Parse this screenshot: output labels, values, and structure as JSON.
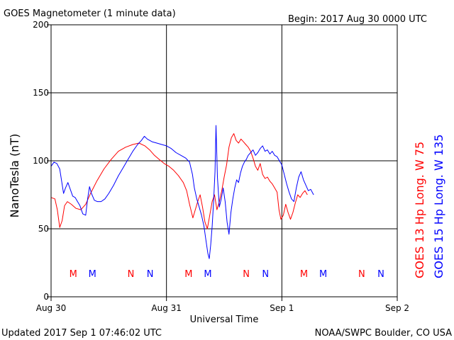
{
  "header": {
    "title": "GOES Magnetometer (1 minute data)",
    "begin": "Begin:  2017 Aug 30 0000 UTC"
  },
  "footer": {
    "updated": "Updated 2017 Sep  1 07:46:02 UTC",
    "credit": "NOAA/SWPC Boulder, CO USA"
  },
  "colors": {
    "goes13": "#ff0000",
    "goes15": "#0000ff",
    "axis": "#000000"
  },
  "chart_data": {
    "type": "line",
    "ylabel": "NanoTesla (nT)",
    "xlabel": "Universal Time",
    "ylim": [
      0,
      200
    ],
    "yticks": [
      0,
      50,
      100,
      150,
      200
    ],
    "xlim_hours": [
      0,
      72
    ],
    "xticks": [
      {
        "label": "Aug 30",
        "hour": 0
      },
      {
        "label": "Aug 31",
        "hour": 24
      },
      {
        "label": "Sep 1",
        "hour": 48
      },
      {
        "label": "Sep 2",
        "hour": 72
      }
    ],
    "grid": true,
    "legend": [
      {
        "series": "goes13",
        "text": "GOES 13 Hp  Long. W 75"
      },
      {
        "series": "goes15",
        "text": "GOES 15 Hp  Long. W 135"
      }
    ],
    "markers": [
      {
        "label": "M",
        "hour": 4.6,
        "series": "goes13"
      },
      {
        "label": "M",
        "hour": 8.6,
        "series": "goes15"
      },
      {
        "label": "N",
        "hour": 16.6,
        "series": "goes13"
      },
      {
        "label": "N",
        "hour": 20.6,
        "series": "goes15"
      },
      {
        "label": "M",
        "hour": 28.6,
        "series": "goes13"
      },
      {
        "label": "M",
        "hour": 32.6,
        "series": "goes15"
      },
      {
        "label": "N",
        "hour": 40.6,
        "series": "goes13"
      },
      {
        "label": "N",
        "hour": 44.6,
        "series": "goes15"
      },
      {
        "label": "M",
        "hour": 52.6,
        "series": "goes13"
      },
      {
        "label": "M",
        "hour": 56.6,
        "series": "goes15"
      },
      {
        "label": "N",
        "hour": 64.6,
        "series": "goes13"
      },
      {
        "label": "N",
        "hour": 68.6,
        "series": "goes15"
      }
    ],
    "series": [
      {
        "id": "goes13",
        "name": "GOES 13 Hp",
        "points": [
          [
            0,
            73
          ],
          [
            0.8,
            72
          ],
          [
            1.3,
            64
          ],
          [
            1.8,
            51
          ],
          [
            2.3,
            56
          ],
          [
            2.8,
            67
          ],
          [
            3.4,
            70
          ],
          [
            4.2,
            68
          ],
          [
            5.2,
            65
          ],
          [
            6.2,
            64
          ],
          [
            7.2,
            68
          ],
          [
            8.2,
            76
          ],
          [
            9.5,
            85
          ],
          [
            11,
            94
          ],
          [
            12.5,
            101
          ],
          [
            14,
            107
          ],
          [
            15.5,
            110
          ],
          [
            17,
            112
          ],
          [
            18.3,
            113
          ],
          [
            19.5,
            111
          ],
          [
            20.5,
            108
          ],
          [
            21.5,
            104
          ],
          [
            22.5,
            101
          ],
          [
            23.5,
            98
          ],
          [
            24.5,
            96
          ],
          [
            25.5,
            93
          ],
          [
            26.5,
            89
          ],
          [
            27.5,
            84
          ],
          [
            28.2,
            78
          ],
          [
            28.8,
            68
          ],
          [
            29.5,
            58
          ],
          [
            30,
            64
          ],
          [
            30.5,
            70
          ],
          [
            31,
            75
          ],
          [
            31.5,
            66
          ],
          [
            32,
            55
          ],
          [
            32.5,
            50
          ],
          [
            33,
            60
          ],
          [
            33.5,
            70
          ],
          [
            34,
            75
          ],
          [
            34.5,
            64
          ],
          [
            35,
            70
          ],
          [
            35.5,
            78
          ],
          [
            36,
            88
          ],
          [
            36.5,
            97
          ],
          [
            37,
            110
          ],
          [
            37.5,
            117
          ],
          [
            38,
            120
          ],
          [
            38.5,
            115
          ],
          [
            39,
            113
          ],
          [
            39.5,
            116
          ],
          [
            40,
            114
          ],
          [
            40.5,
            112
          ],
          [
            41,
            110
          ],
          [
            41.5,
            107
          ],
          [
            42,
            102
          ],
          [
            42.5,
            96
          ],
          [
            43,
            93
          ],
          [
            43.5,
            98
          ],
          [
            44,
            90
          ],
          [
            44.5,
            87
          ],
          [
            45,
            88
          ],
          [
            45.5,
            85
          ],
          [
            46,
            83
          ],
          [
            46.5,
            80
          ],
          [
            47,
            77
          ],
          [
            47.4,
            64
          ],
          [
            47.8,
            57
          ],
          [
            48.3,
            60
          ],
          [
            48.8,
            68
          ],
          [
            49.3,
            62
          ],
          [
            49.8,
            57
          ],
          [
            50.3,
            62
          ],
          [
            50.8,
            69
          ],
          [
            51.3,
            75
          ],
          [
            51.8,
            73
          ],
          [
            52.3,
            76
          ],
          [
            52.8,
            78
          ],
          [
            53.3,
            75
          ]
        ]
      },
      {
        "id": "goes15",
        "name": "GOES 15 Hp",
        "points": [
          [
            0,
            96
          ],
          [
            0.6,
            99
          ],
          [
            1.2,
            98
          ],
          [
            1.8,
            94
          ],
          [
            2.2,
            85
          ],
          [
            2.6,
            76
          ],
          [
            3.0,
            80
          ],
          [
            3.5,
            84
          ],
          [
            4.0,
            79
          ],
          [
            4.5,
            74
          ],
          [
            5.0,
            73
          ],
          [
            5.5,
            70
          ],
          [
            6.0,
            67
          ],
          [
            6.6,
            61
          ],
          [
            7.2,
            60
          ],
          [
            7.6,
            72
          ],
          [
            8.0,
            81
          ],
          [
            8.4,
            76
          ],
          [
            9.0,
            71
          ],
          [
            9.6,
            70
          ],
          [
            10.4,
            70
          ],
          [
            11.2,
            72
          ],
          [
            12.0,
            76
          ],
          [
            13.0,
            82
          ],
          [
            14.0,
            89
          ],
          [
            15.0,
            95
          ],
          [
            16.0,
            101
          ],
          [
            17.0,
            107
          ],
          [
            18.0,
            112
          ],
          [
            18.8,
            115
          ],
          [
            19.4,
            118
          ],
          [
            20.0,
            116
          ],
          [
            21,
            114
          ],
          [
            22,
            113
          ],
          [
            23,
            112
          ],
          [
            24,
            111
          ],
          [
            25,
            109
          ],
          [
            26,
            106
          ],
          [
            27,
            104
          ],
          [
            28,
            102
          ],
          [
            28.8,
            99
          ],
          [
            29.4,
            90
          ],
          [
            29.8,
            80
          ],
          [
            30.3,
            72
          ],
          [
            30.8,
            66
          ],
          [
            31.3,
            60
          ],
          [
            31.8,
            52
          ],
          [
            32.2,
            42
          ],
          [
            32.6,
            32
          ],
          [
            32.9,
            28
          ],
          [
            33.2,
            38
          ],
          [
            33.5,
            52
          ],
          [
            33.8,
            70
          ],
          [
            34.1,
            92
          ],
          [
            34.3,
            126
          ],
          [
            34.6,
            88
          ],
          [
            35,
            66
          ],
          [
            35.4,
            72
          ],
          [
            35.8,
            80
          ],
          [
            36.2,
            70
          ],
          [
            36.6,
            55
          ],
          [
            37,
            46
          ],
          [
            37.4,
            62
          ],
          [
            37.8,
            72
          ],
          [
            38.2,
            80
          ],
          [
            38.6,
            86
          ],
          [
            39,
            84
          ],
          [
            39.4,
            91
          ],
          [
            39.8,
            96
          ],
          [
            40.2,
            99
          ],
          [
            40.6,
            101
          ],
          [
            41,
            104
          ],
          [
            41.5,
            106
          ],
          [
            42,
            108
          ],
          [
            42.5,
            104
          ],
          [
            43,
            106
          ],
          [
            43.5,
            109
          ],
          [
            44,
            111
          ],
          [
            44.5,
            107
          ],
          [
            45,
            108
          ],
          [
            45.5,
            105
          ],
          [
            46,
            107
          ],
          [
            46.5,
            104
          ],
          [
            47,
            103
          ],
          [
            47.5,
            100
          ],
          [
            48,
            97
          ],
          [
            48.5,
            90
          ],
          [
            49,
            83
          ],
          [
            49.5,
            77
          ],
          [
            50,
            72
          ],
          [
            50.5,
            70
          ],
          [
            51,
            80
          ],
          [
            51.5,
            88
          ],
          [
            52,
            92
          ],
          [
            52.5,
            86
          ],
          [
            53,
            82
          ],
          [
            53.5,
            78
          ],
          [
            54,
            79
          ],
          [
            54.6,
            75
          ]
        ]
      }
    ]
  }
}
